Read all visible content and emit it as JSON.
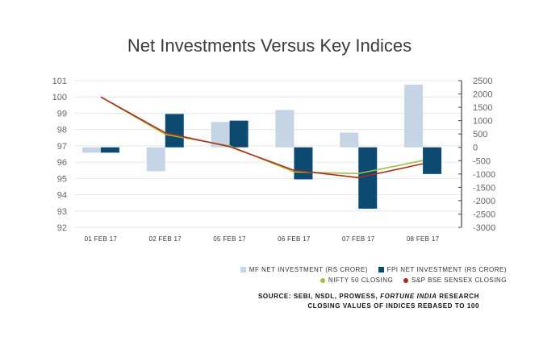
{
  "chart_data": {
    "type": "bar+line",
    "title": "Net Investments Versus Key Indices",
    "categories": [
      "01 FEB 17",
      "02 FEB 17",
      "05 FEB 17",
      "06 FEB 17",
      "07 FEB 17",
      "08 FEB 17"
    ],
    "bar_series": [
      {
        "name": "MF NET INVESTMENT (RS CRORE)",
        "color": "#c5d5e6",
        "values": [
          -200,
          -900,
          950,
          1400,
          550,
          2350
        ]
      },
      {
        "name": "FPI NET INVESTMENT (RS CRORE)",
        "color": "#0d4a72",
        "values": [
          -200,
          1250,
          1000,
          -1200,
          -2300,
          -1000
        ]
      }
    ],
    "line_series": [
      {
        "name": "NIFTY 50 CLOSING",
        "color": "#9ac43c",
        "values": [
          100,
          97.7,
          97.0,
          95.4,
          95.3,
          96.1
        ]
      },
      {
        "name": "S&P BSE SENSEX CLOSING",
        "color": "#b22a1e",
        "values": [
          100,
          97.8,
          96.95,
          95.5,
          95.05,
          95.9
        ]
      }
    ],
    "y_left": {
      "min": 92,
      "max": 101,
      "ticks": [
        92,
        93,
        94,
        95,
        96,
        97,
        98,
        99,
        100,
        101
      ]
    },
    "y_right": {
      "min": -3000,
      "max": 2500,
      "ticks": [
        2500,
        2000,
        1500,
        1000,
        500,
        0,
        -500,
        -1000,
        -1500,
        -2000,
        -2500,
        -3000
      ]
    },
    "legend_position": "bottom-right",
    "grid": "horizontal",
    "source_lines": [
      "SOURCE: SEBI, NSDL, PROWESS, ",
      "FORTUNE INDIA",
      " RESEARCH"
    ],
    "note": "CLOSING VALUES OF INDICES REBASED TO 100"
  }
}
